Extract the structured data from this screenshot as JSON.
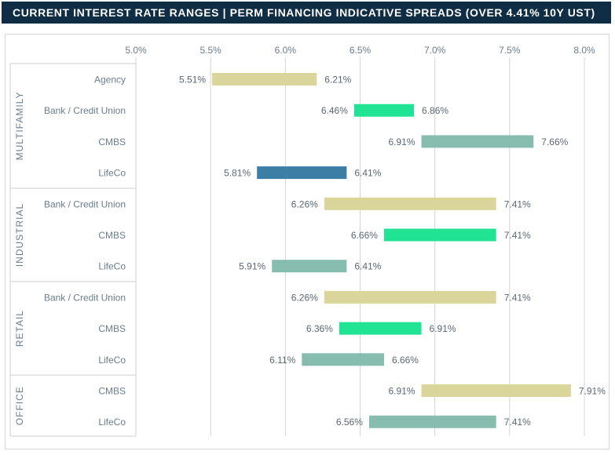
{
  "header": {
    "title": "CURRENT INTEREST RATE RANGES  |  PERM FINANCING INDICATIVE SPREADS (OVER 4.41% 10Y UST)"
  },
  "colors": {
    "header_bg": "#0f2d45",
    "tan": "#d9d59b",
    "green": "#20e394",
    "sage": "#87bdae",
    "navy": "#3d7ea6",
    "grid": "#d4d4d4"
  },
  "chart_data": {
    "type": "bar",
    "orientation": "horizontal-range",
    "title": "CURRENT INTEREST RATE RANGES  |  PERM FINANCING INDICATIVE SPREADS (OVER 4.41% 10Y UST)",
    "xlim": [
      5.0,
      8.0
    ],
    "x_ticks": [
      "5.0%",
      "5.5%",
      "6.0%",
      "6.5%",
      "7.0%",
      "7.5%",
      "8.0%"
    ],
    "grid": true,
    "groups": [
      {
        "name": "MULTIFAMILY",
        "rows": [
          {
            "category": "Agency",
            "low": 5.51,
            "high": 6.21,
            "low_label": "5.51%",
            "high_label": "6.21%",
            "color": "tan"
          },
          {
            "category": "Bank / Credit Union",
            "low": 6.46,
            "high": 6.86,
            "low_label": "6.46%",
            "high_label": "6.86%",
            "color": "green"
          },
          {
            "category": "CMBS",
            "low": 6.91,
            "high": 7.66,
            "low_label": "6.91%",
            "high_label": "7.66%",
            "color": "sage"
          },
          {
            "category": "LifeCo",
            "low": 5.81,
            "high": 6.41,
            "low_label": "5.81%",
            "high_label": "6.41%",
            "color": "navy"
          }
        ]
      },
      {
        "name": "INDUSTRIAL",
        "rows": [
          {
            "category": "Bank / Credit Union",
            "low": 6.26,
            "high": 7.41,
            "low_label": "6.26%",
            "high_label": "7.41%",
            "color": "tan"
          },
          {
            "category": "CMBS",
            "low": 6.66,
            "high": 7.41,
            "low_label": "6.66%",
            "high_label": "7.41%",
            "color": "green"
          },
          {
            "category": "LifeCo",
            "low": 5.91,
            "high": 6.41,
            "low_label": "5.91%",
            "high_label": "6.41%",
            "color": "sage"
          }
        ]
      },
      {
        "name": "RETAIL",
        "rows": [
          {
            "category": "Bank / Credit Union",
            "low": 6.26,
            "high": 7.41,
            "low_label": "6.26%",
            "high_label": "7.41%",
            "color": "tan"
          },
          {
            "category": "CMBS",
            "low": 6.36,
            "high": 6.91,
            "low_label": "6.36%",
            "high_label": "6.91%",
            "color": "green"
          },
          {
            "category": "LifeCo",
            "low": 6.11,
            "high": 6.66,
            "low_label": "6.11%",
            "high_label": "6.66%",
            "color": "sage"
          }
        ]
      },
      {
        "name": "OFFICE",
        "rows": [
          {
            "category": "CMBS",
            "low": 6.91,
            "high": 7.91,
            "low_label": "6.91%",
            "high_label": "7.91%",
            "color": "tan"
          },
          {
            "category": "LifeCo",
            "low": 6.56,
            "high": 7.41,
            "low_label": "6.56%",
            "high_label": "7.41%",
            "color": "sage"
          }
        ]
      }
    ]
  }
}
